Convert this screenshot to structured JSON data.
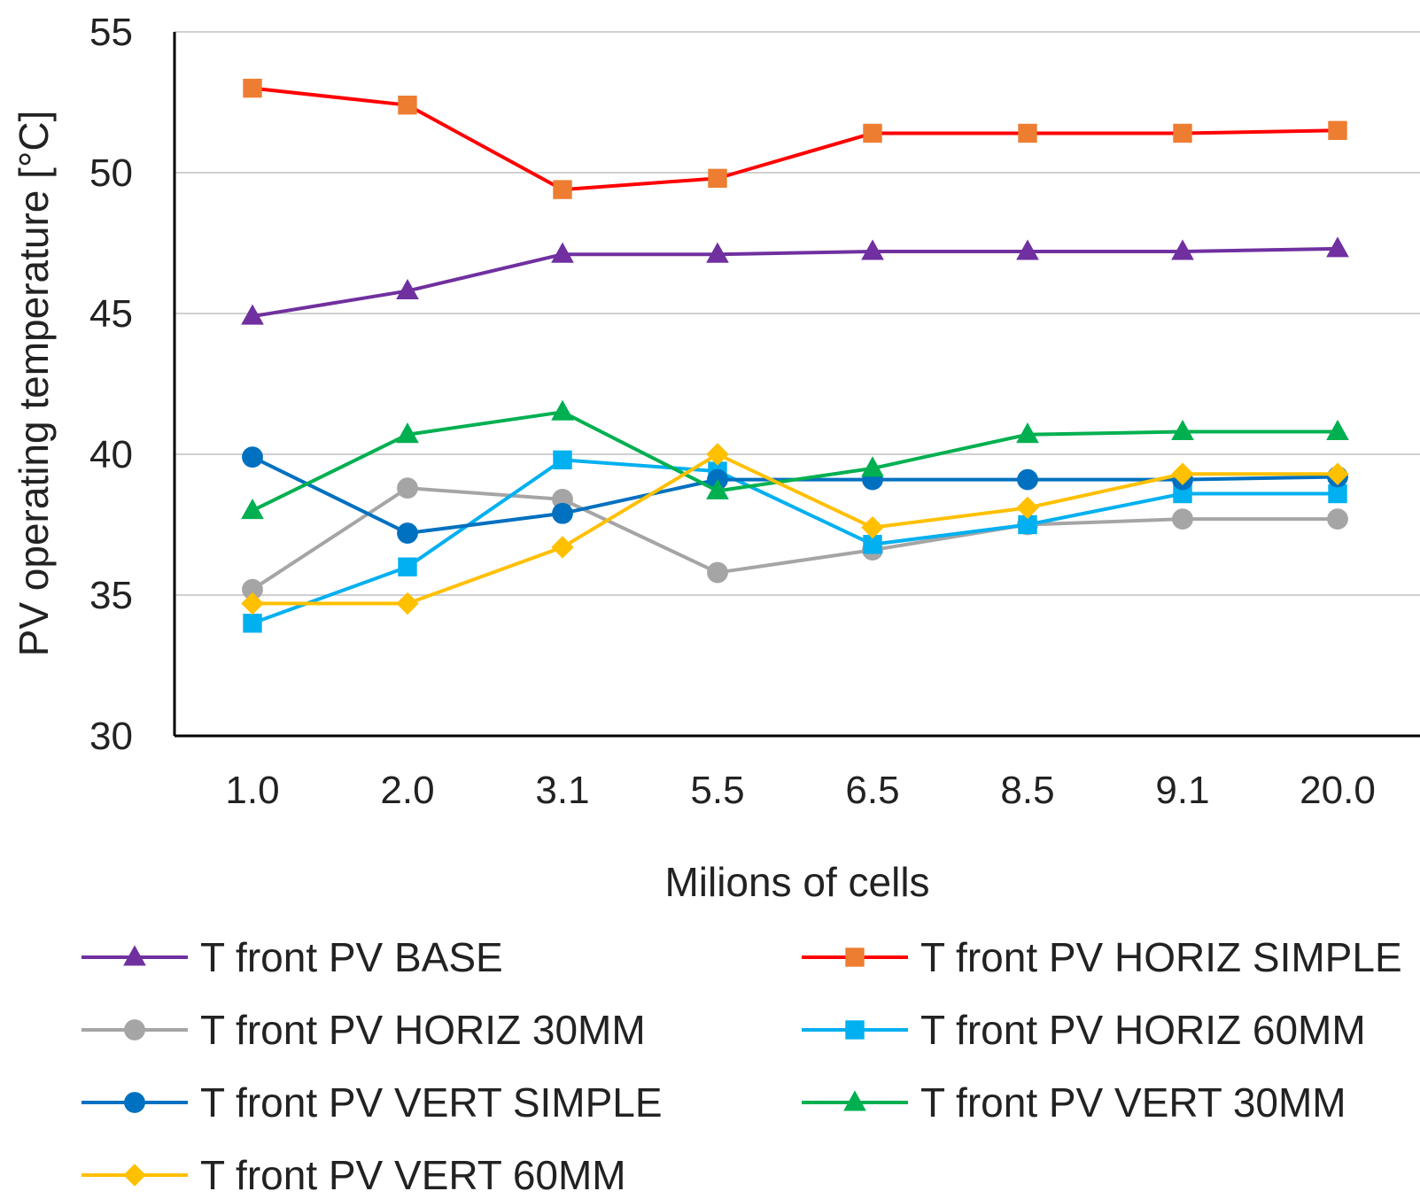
{
  "chart_data": {
    "type": "line",
    "title": "",
    "xlabel": "Milions of cells",
    "ylabel": "PV operating temperature [°C]",
    "categories": [
      "1.0",
      "2.0",
      "3.1",
      "5.5",
      "6.5",
      "8.5",
      "9.1",
      "20.0"
    ],
    "ylim": [
      30,
      55
    ],
    "yticks": [
      30,
      35,
      40,
      45,
      50,
      55
    ],
    "grid": true,
    "legend_position": "bottom",
    "series": [
      {
        "name": "T front PV BASE",
        "color": "#7030A0",
        "marker": "triangle",
        "values": [
          44.9,
          45.8,
          47.1,
          47.1,
          47.2,
          47.2,
          47.2,
          47.3
        ]
      },
      {
        "name": "T front PV HORIZ SIMPLE",
        "color": "#FF0000",
        "marker_color": "#ED7D31",
        "marker": "square",
        "values": [
          53.0,
          52.4,
          49.4,
          49.8,
          51.4,
          51.4,
          51.4,
          51.5
        ]
      },
      {
        "name": "T front PV HORIZ 30MM",
        "color": "#A5A5A5",
        "marker": "circle",
        "values": [
          35.2,
          38.8,
          38.4,
          35.8,
          36.6,
          37.5,
          37.7,
          37.7
        ]
      },
      {
        "name": "T front PV HORIZ 60MM",
        "color": "#00B0F0",
        "marker": "square",
        "values": [
          34.0,
          36.0,
          39.8,
          39.4,
          36.8,
          37.5,
          38.6,
          38.6
        ]
      },
      {
        "name": "T front PV VERT SIMPLE",
        "color": "#0070C0",
        "marker": "circle",
        "values": [
          39.9,
          37.2,
          37.9,
          39.1,
          39.1,
          39.1,
          39.1,
          39.2
        ]
      },
      {
        "name": "T front PV VERT 30MM",
        "color": "#00B050",
        "marker": "triangle",
        "values": [
          38.0,
          40.7,
          41.5,
          38.7,
          39.5,
          40.7,
          40.8,
          40.8
        ]
      },
      {
        "name": "T front PV VERT 60MM",
        "color": "#FFC000",
        "marker": "diamond",
        "values": [
          34.7,
          34.7,
          36.7,
          40.0,
          37.4,
          38.1,
          39.3,
          39.3
        ]
      }
    ]
  }
}
